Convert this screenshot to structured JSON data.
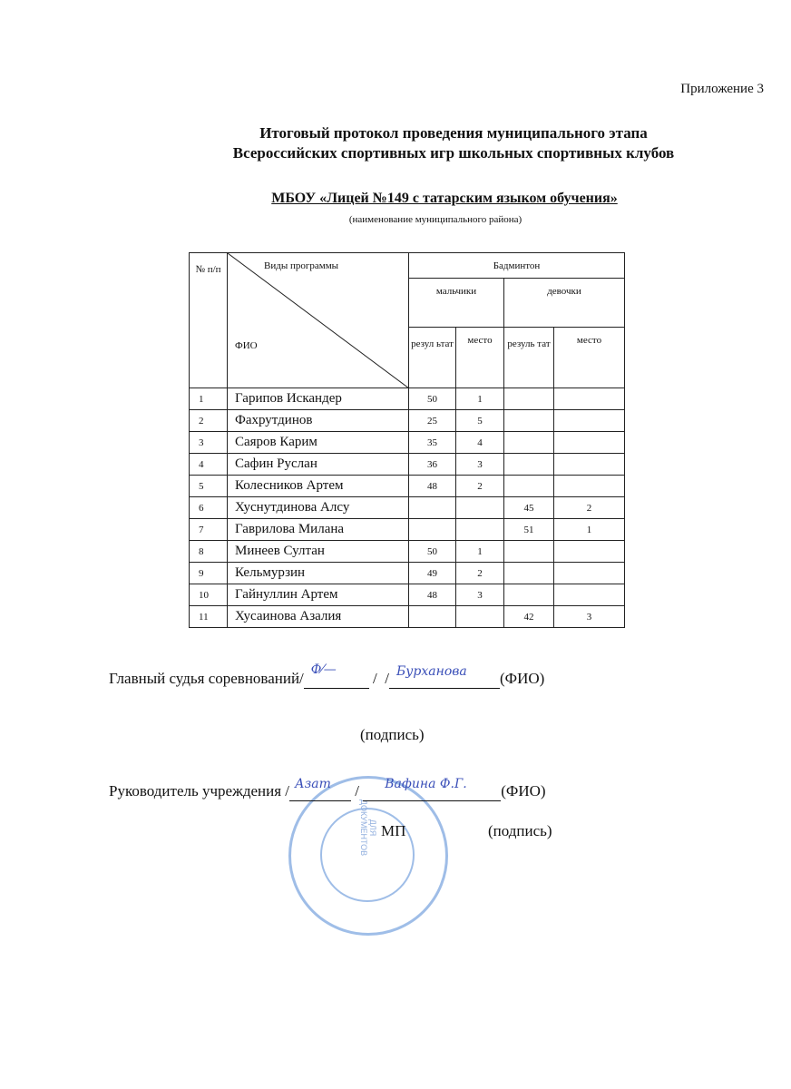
{
  "header": {
    "appendix": "Приложение 3",
    "title_line1": "Итоговый протокол проведения муниципального этапа",
    "title_line2": "Всероссийских спортивных игр школьных спортивных клубов",
    "school": "МБОУ «Лицей №149 с татарским языком обучения»",
    "district_caption": "(наименование муниципального района)"
  },
  "table": {
    "col_num": "№ п/п",
    "col_programs": "Виды программы",
    "col_fio": "ФИО",
    "sport": "Бадминтон",
    "boys": "мальчики",
    "girls": "девочки",
    "boys_result": "резул ьтат",
    "boys_place": "место",
    "girls_result": "резуль тат",
    "girls_place": "место",
    "rows": [
      {
        "n": "1",
        "name": "Гарипов Искандер",
        "br": "50",
        "bp": "1",
        "gr": "",
        "gp": ""
      },
      {
        "n": "2",
        "name": "Фахрутдинов",
        "br": "25",
        "bp": "5",
        "gr": "",
        "gp": ""
      },
      {
        "n": "3",
        "name": "Саяров Карим",
        "br": "35",
        "bp": "4",
        "gr": "",
        "gp": ""
      },
      {
        "n": "4",
        "name": "Сафин Руслан",
        "br": "36",
        "bp": "3",
        "gr": "",
        "gp": ""
      },
      {
        "n": "5",
        "name": "Колесников Артем",
        "br": "48",
        "bp": "2",
        "gr": "",
        "gp": ""
      },
      {
        "n": "6",
        "name": "Хуснутдинова Алсу",
        "br": "",
        "bp": "",
        "gr": "45",
        "gp": "2"
      },
      {
        "n": "7",
        "name": "Гаврилова Милана",
        "br": "",
        "bp": "",
        "gr": "51",
        "gp": "1"
      },
      {
        "n": "8",
        "name": "Минеев Султан",
        "br": "50",
        "bp": "1",
        "gr": "",
        "gp": ""
      },
      {
        "n": "9",
        "name": "Кельмурзин",
        "br": "49",
        "bp": "2",
        "gr": "",
        "gp": ""
      },
      {
        "n": "10",
        "name": "Гайнуллин  Артем",
        "br": "48",
        "bp": "3",
        "gr": "",
        "gp": ""
      },
      {
        "n": "11",
        "name": "Хусаинова Азалия",
        "br": "",
        "bp": "",
        "gr": "42",
        "gp": "3"
      }
    ]
  },
  "signatures": {
    "judge_label": "Главный судья соревнований/",
    "fio": "(ФИО)",
    "signature_caption": "(подпись)",
    "head_label": "Руководитель учреждения /",
    "mp": "МП",
    "signature_caption2": "(подпись)"
  },
  "stamp": {
    "center_text": "ДЛЯ ДОКУМЕНТОВ",
    "color": "#7fa8e0"
  }
}
